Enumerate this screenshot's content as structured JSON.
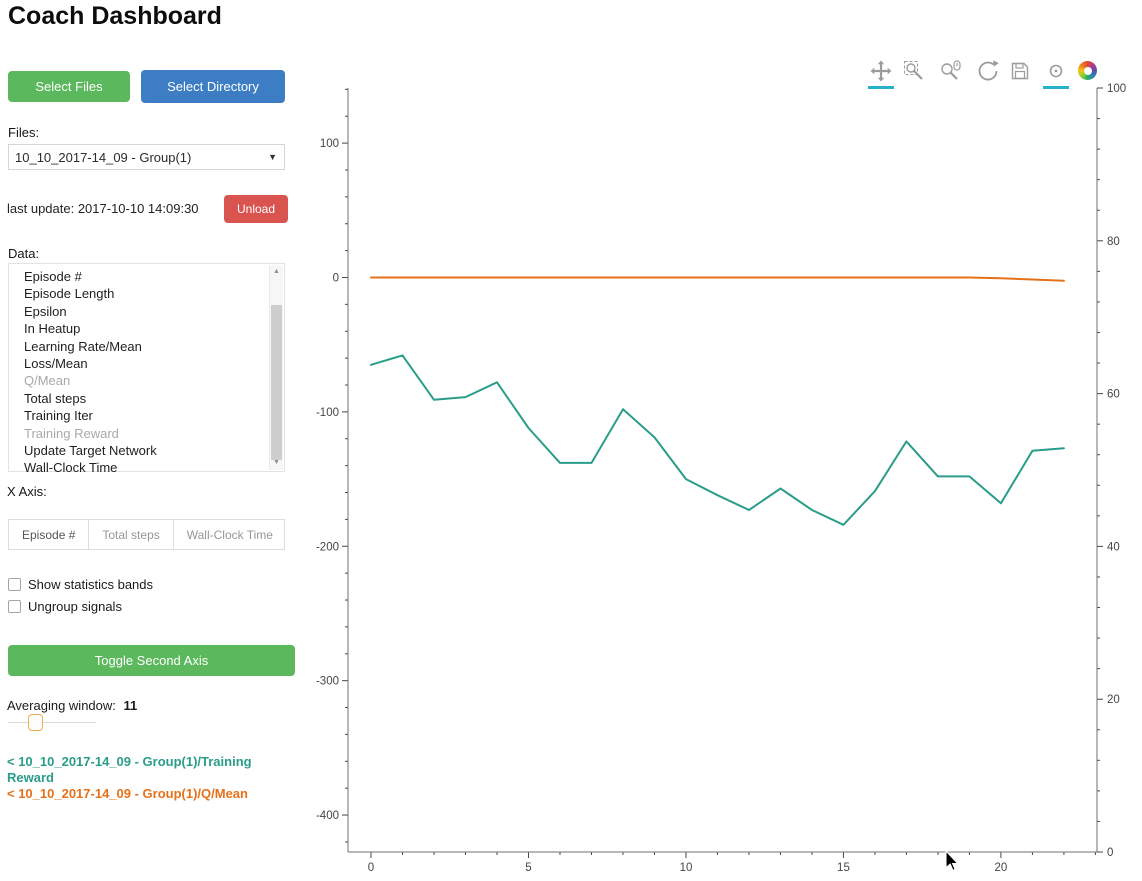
{
  "title": "Coach Dashboard",
  "colors": {
    "green": "#5cb85c",
    "blue": "#3c7dc4",
    "red": "#d9534f",
    "active_tool": "#26b2cc",
    "teal_series": "#2a9d8a",
    "orange_series": "#e6711a"
  },
  "sidebar": {
    "select_files_label": "Select Files",
    "select_directory_label": "Select Directory",
    "files_label": "Files:",
    "files_selected": "10_10_2017-14_09 - Group(1)",
    "dropdown_arrow": "▼",
    "last_update": "last update: 2017-10-10 14:09:30",
    "unload_label": "Unload",
    "data_label": "Data:",
    "data_items": [
      {
        "label": "Episode #",
        "selected": false
      },
      {
        "label": "Episode Length",
        "selected": false
      },
      {
        "label": "Epsilon",
        "selected": false
      },
      {
        "label": "In Heatup",
        "selected": false
      },
      {
        "label": "Learning Rate/Mean",
        "selected": false
      },
      {
        "label": "Loss/Mean",
        "selected": false
      },
      {
        "label": "Q/Mean",
        "selected": true
      },
      {
        "label": "Total steps",
        "selected": false
      },
      {
        "label": "Training Iter",
        "selected": false
      },
      {
        "label": "Training Reward",
        "selected": true
      },
      {
        "label": "Update Target Network",
        "selected": false
      },
      {
        "label": "Wall-Clock Time",
        "selected": false
      }
    ],
    "scroll_up_glyph": "▲",
    "scroll_down_glyph": "▼",
    "x_axis_label": "X Axis:",
    "x_axis_tabs": [
      "Episode #",
      "Total steps",
      "Wall-Clock Time"
    ],
    "active_tab": "Episode #",
    "show_bands_label": "Show statistics bands",
    "ungroup_label": "Ungroup signals",
    "toggle_second_axis_label": "Toggle Second Axis",
    "averaging_label": "Averaging window:",
    "averaging_value": "11",
    "legend": [
      {
        "label": "< 10_10_2017-14_09 - Group(1)/Training Reward",
        "color": "#2a9d8a"
      },
      {
        "label": "< 10_10_2017-14_09 - Group(1)/Q/Mean",
        "color": "#e6711a"
      }
    ]
  },
  "toolbar": {
    "tools": [
      "pan",
      "box-zoom",
      "wheel-zoom",
      "reset",
      "save",
      "hover",
      "bokeh-logo"
    ],
    "active_tools": [
      "pan",
      "hover"
    ]
  },
  "chart_data": {
    "type": "line",
    "title": "",
    "xlabel": "",
    "ylabel": "",
    "grid": false,
    "legend_position": "external-sidebar",
    "x": [
      0,
      1,
      2,
      3,
      4,
      5,
      6,
      7,
      8,
      9,
      10,
      11,
      12,
      13,
      14,
      15,
      16,
      17,
      18,
      19,
      20,
      21,
      22
    ],
    "series": [
      {
        "name": "10_10_2017-14_09 - Group(1)/Training Reward",
        "color": "#2a9d8a",
        "axis": "left",
        "values": [
          -65,
          -58,
          -91,
          -89,
          -78,
          -112,
          -138,
          -138,
          -98,
          -119,
          -150,
          -162,
          -173,
          -157,
          -173,
          -184,
          -159,
          -122,
          -148,
          -148,
          -168,
          -129,
          -127
        ]
      },
      {
        "name": "10_10_2017-14_09 - Group(1)/Q/Mean",
        "color": "#e6711a",
        "axis": "left",
        "values": [
          0,
          0,
          0,
          0,
          0,
          0,
          0,
          0,
          0,
          0,
          0,
          0,
          0,
          0,
          0,
          0,
          0,
          0,
          0,
          0,
          -0.5,
          -1.5,
          -2.5
        ]
      }
    ],
    "x_ticks": [
      0,
      5,
      10,
      15,
      20
    ],
    "left_axis_ticks": [
      100,
      0,
      -100,
      -200,
      -300,
      -400
    ],
    "right_axis_ticks": [
      100,
      80,
      60,
      40,
      20,
      0
    ],
    "x_range": [
      -0.73,
      23.05
    ],
    "left_axis_range": [
      -427.5,
      141
    ],
    "right_axis_range": [
      0,
      100
    ]
  }
}
